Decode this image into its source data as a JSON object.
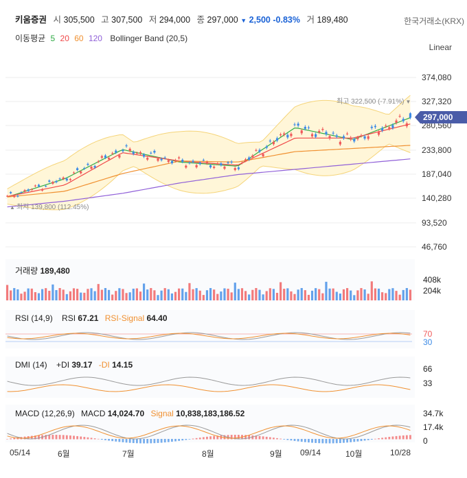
{
  "header": {
    "name": "키움증권",
    "open_label": "시",
    "open": "305,500",
    "high_label": "고",
    "high": "307,500",
    "low_label": "저",
    "low": "294,000",
    "close_label": "종",
    "close": "297,000",
    "change_arrow": "▼",
    "change": "2,500",
    "change_pct": "-0.83%",
    "volume_label": "거",
    "volume": "189,480",
    "exchange": "한국거래소(KRX)"
  },
  "moving_avg": {
    "label": "이동평균",
    "periods": [
      "5",
      "20",
      "60",
      "120"
    ],
    "colors": [
      "#2eaa44",
      "#f04848",
      "#f09030",
      "#9060d8"
    ],
    "bollinger": "Bollinger Band (20,5)"
  },
  "scale_selector": "Linear",
  "price_axis": {
    "ticks": [
      "374,080",
      "327,320",
      "280,560",
      "233,800",
      "187,040",
      "140,280",
      "93,520",
      "46,760"
    ],
    "current_tag": "297,000",
    "high_annotation": "최고 322,500 (-7.91%)",
    "low_annotation": "최저 139,800 (112.45%)"
  },
  "volume_panel": {
    "label": "거래량",
    "value": "189,480",
    "ticks": [
      "408k",
      "204k"
    ]
  },
  "rsi_panel": {
    "label": "RSI (14,9)",
    "rsi_label": "RSI",
    "rsi": "67.21",
    "signal_label": "RSI-Signal",
    "signal": "64.40",
    "ticks": [
      "70",
      "30"
    ]
  },
  "dmi_panel": {
    "label": "DMI (14)",
    "pdi_label": "+DI",
    "pdi": "39.17",
    "mdi_label": "-DI",
    "mdi": "14.15",
    "ticks": [
      "66",
      "33"
    ]
  },
  "macd_panel": {
    "label": "MACD (12,26,9)",
    "macd_label": "MACD",
    "macd": "14,024.70",
    "signal_label": "Signal",
    "signal": "10,838,183,186.52",
    "ticks": [
      "34.7k",
      "17.4k",
      "0"
    ]
  },
  "x_axis": {
    "labels": [
      "05/14",
      "6월",
      "7월",
      "8월",
      "9월",
      "09/14",
      "10월",
      "10/28"
    ]
  },
  "colors": {
    "up": "#f05a5a",
    "down": "#3d8be6",
    "accent": "#1a62d6",
    "band": "#fff6d8",
    "band_line": "#f5d478"
  },
  "chart_data": {
    "type": "line",
    "title": "키움증권",
    "x": [
      "05/14",
      "6월",
      "7월",
      "8월",
      "9월",
      "09/14",
      "10월",
      "10/28"
    ],
    "ylim": [
      46760,
      374080
    ],
    "series": [
      {
        "name": "5",
        "values": [
          145000,
          180000,
          236000,
          212000,
          204000,
          278000,
          255000,
          297000
        ]
      },
      {
        "name": "20",
        "values": [
          146000,
          168000,
          230000,
          214000,
          206000,
          258000,
          258000,
          285000
        ]
      },
      {
        "name": "60",
        "values": [
          145000,
          156000,
          190000,
          214000,
          212000,
          232000,
          238000,
          244000
        ]
      },
      {
        "name": "120",
        "values": [
          126000,
          137000,
          152000,
          172000,
          188000,
          198000,
          208000,
          218000
        ]
      }
    ],
    "annotations": [
      "최고 322,500 (-7.91%)",
      "최저 139,800 (112.45%)"
    ],
    "last": {
      "open": 305500,
      "high": 307500,
      "low": 294000,
      "close": 297000,
      "volume": 189480
    }
  }
}
